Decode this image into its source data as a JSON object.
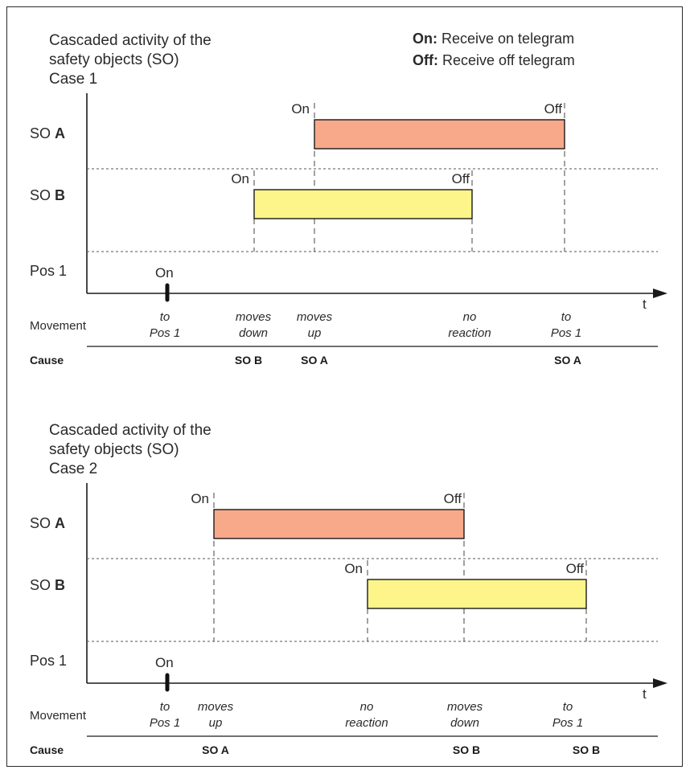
{
  "legend": {
    "on_key": "On:",
    "on_text": " Receive on telegram",
    "off_key": "Off:",
    "off_text": " Receive off telegram"
  },
  "colors": {
    "so_a": "#f7a98a",
    "so_b": "#fdf58a"
  },
  "row_prefix": "SO",
  "pos_label": "Pos 1",
  "movement_label": "Movement",
  "cause_label": "Cause",
  "axis_label": "t",
  "on_word": "On",
  "off_word": "Off",
  "diagrams": [
    {
      "title": [
        "Cascaded activity of the",
        "safety objects (SO)",
        "Case 1"
      ],
      "bars": [
        {
          "so": "A",
          "on_label": "On",
          "off_label": "Off"
        },
        {
          "so": "B",
          "on_label": "On",
          "off_label": "Off"
        }
      ],
      "pos_on_label": "On",
      "movements": [
        [
          "to",
          "Pos 1"
        ],
        [
          "moves",
          "down"
        ],
        [
          "moves",
          "up"
        ],
        [
          "no",
          "reaction"
        ],
        [
          "to",
          "Pos 1"
        ]
      ],
      "causes": [
        "SO B",
        "SO A",
        "SO A"
      ]
    },
    {
      "title": [
        "Cascaded activity of the",
        "safety objects (SO)",
        "Case 2"
      ],
      "bars": [
        {
          "so": "A",
          "on_label": "On",
          "off_label": "Off"
        },
        {
          "so": "B",
          "on_label": "On",
          "off_label": "Off"
        }
      ],
      "pos_on_label": "On",
      "movements": [
        [
          "to",
          "Pos 1"
        ],
        [
          "moves",
          "up"
        ],
        [
          "no",
          "reaction"
        ],
        [
          "moves",
          "down"
        ],
        [
          "to",
          "Pos 1"
        ]
      ],
      "causes": [
        "SO A",
        "SO B",
        "SO B"
      ]
    }
  ]
}
